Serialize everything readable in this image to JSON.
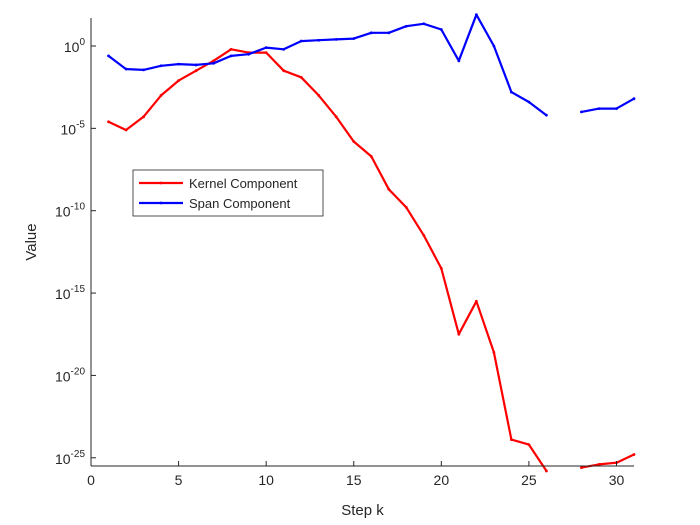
{
  "chart_data": {
    "type": "line",
    "xlabel": "Step k",
    "ylabel": "Value",
    "xlim": [
      0,
      31
    ],
    "ylim_log10": [
      -25.5,
      1.7
    ],
    "yscale": "log",
    "grid": false,
    "legend_position": "center-left",
    "x_ticks": [
      0,
      5,
      10,
      15,
      20,
      25,
      30
    ],
    "x_tick_labels": [
      "0",
      "5",
      "10",
      "15",
      "20",
      "25",
      "30"
    ],
    "y_ticks_log10": [
      0,
      -5,
      -10,
      -15,
      -20,
      -25
    ],
    "y_tick_labels": [
      {
        "base": "10",
        "exp": "0"
      },
      {
        "base": "10",
        "exp": "-5"
      },
      {
        "base": "10",
        "exp": "-10"
      },
      {
        "base": "10",
        "exp": "-15"
      },
      {
        "base": "10",
        "exp": "-20"
      },
      {
        "base": "10",
        "exp": "-25"
      }
    ],
    "series": [
      {
        "name": "Kernel Component",
        "color": "#ff0000",
        "x": [
          1,
          2,
          3,
          4,
          5,
          6,
          7,
          8,
          9,
          10,
          11,
          12,
          13,
          14,
          15,
          16,
          17,
          18,
          19,
          20,
          21,
          22,
          23,
          24,
          25,
          26
        ],
        "log10_y": [
          -4.6,
          -5.1,
          -4.3,
          -3.0,
          -2.1,
          -1.5,
          -0.9,
          -0.2,
          -0.4,
          -0.4,
          -1.5,
          -1.9,
          -3.0,
          -4.3,
          -5.8,
          -6.7,
          -8.7,
          -9.8,
          -11.5,
          -13.5,
          -17.5,
          -15.5,
          -18.6,
          -23.9,
          -24.2,
          -25.8
        ],
        "gap_after_x": 26
      },
      {
        "name": "Kernel Component",
        "color": "#ff0000",
        "x": [
          28,
          29,
          30,
          31
        ],
        "log10_y": [
          -25.6,
          -25.4,
          -25.3,
          -24.8
        ],
        "continuation": true
      },
      {
        "name": "Span Component",
        "color": "#0000ff",
        "x": [
          1,
          2,
          3,
          4,
          5,
          6,
          7,
          8,
          9,
          10,
          11,
          12,
          13,
          14,
          15,
          16,
          17,
          18,
          19,
          20,
          21,
          22,
          23,
          24,
          25,
          26
        ],
        "log10_y": [
          -0.6,
          -1.4,
          -1.45,
          -1.2,
          -1.1,
          -1.15,
          -1.05,
          -0.6,
          -0.5,
          -0.1,
          -0.2,
          0.3,
          0.35,
          0.4,
          0.45,
          0.8,
          0.8,
          1.2,
          1.35,
          1.0,
          -0.9,
          1.9,
          0.0,
          -2.8,
          -3.4,
          -4.2
        ],
        "gap_after_x": 26
      },
      {
        "name": "Span Component",
        "color": "#0000ff",
        "x": [
          28,
          29,
          30,
          31
        ],
        "log10_y": [
          -4.0,
          -3.8,
          -3.8,
          -3.2
        ],
        "continuation": true
      }
    ]
  }
}
